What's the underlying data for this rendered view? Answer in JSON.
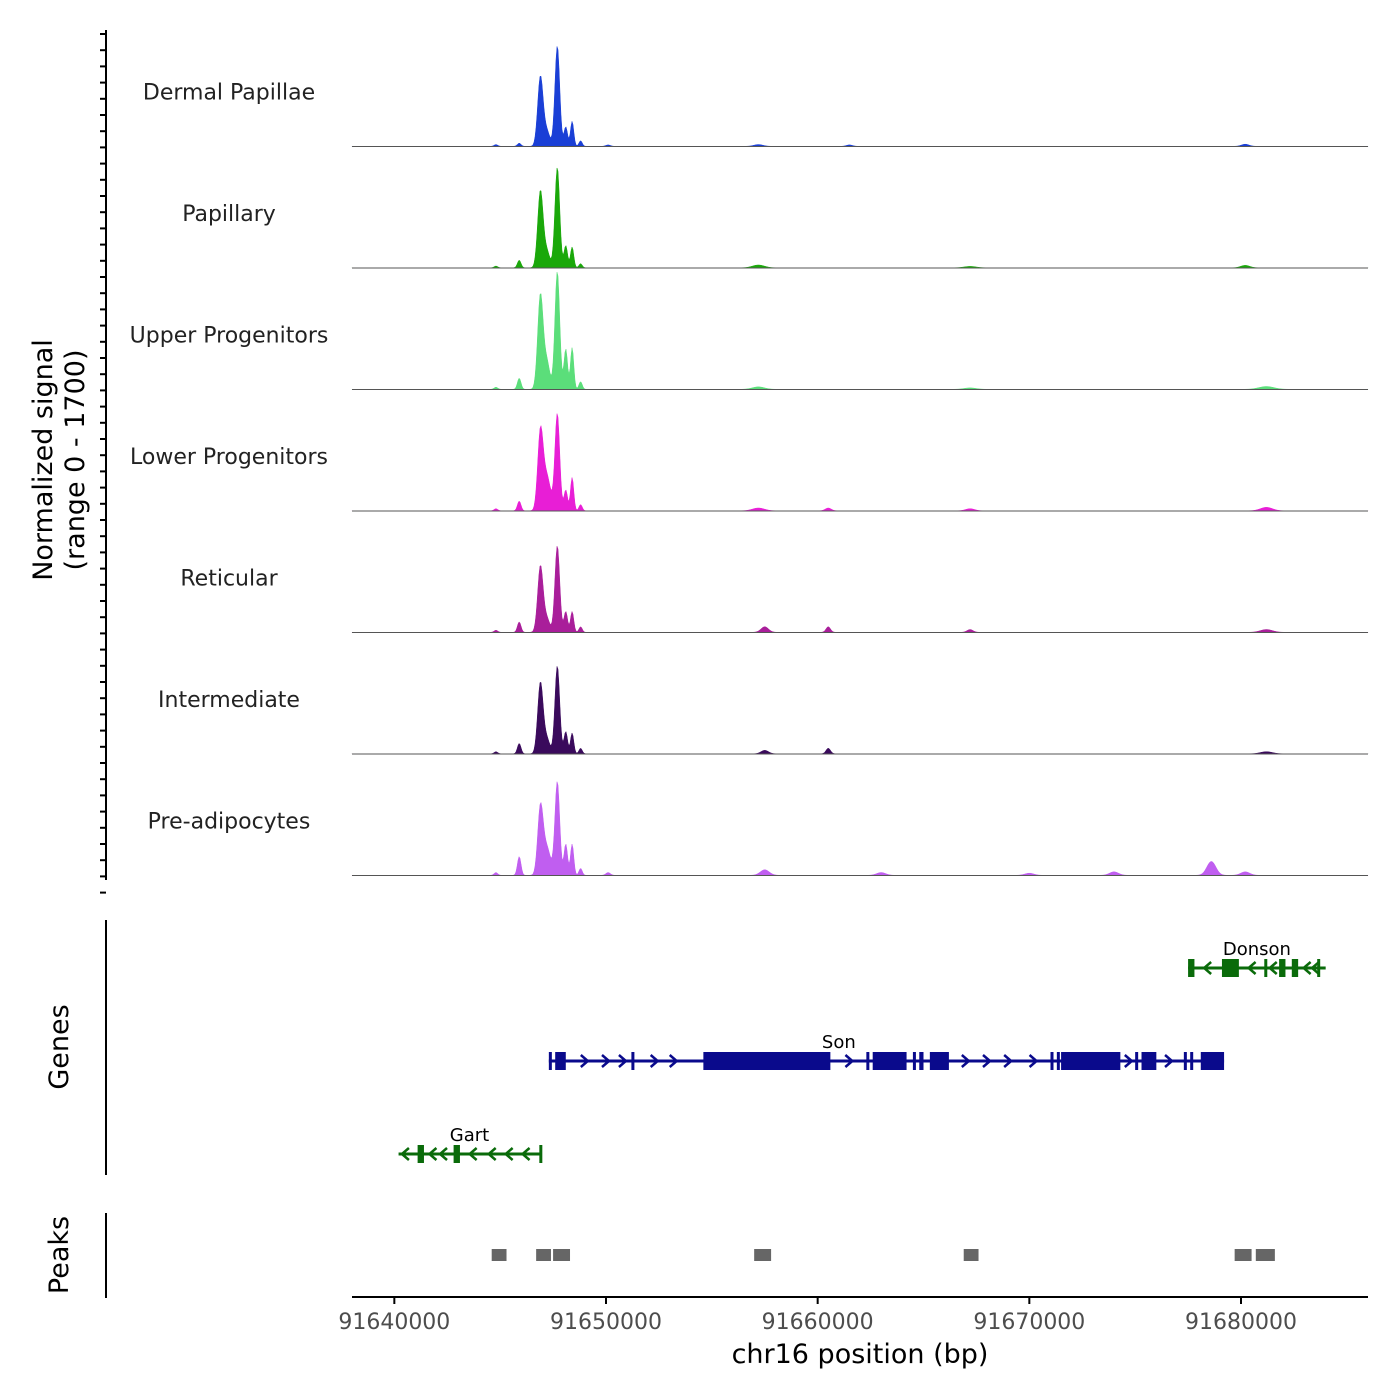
{
  "chart_data": {
    "type": "area",
    "chromosome": "chr16",
    "xlabel": "chr16 position (bp)",
    "xlim": [
      91638000,
      91686000
    ],
    "x_ticks": [
      91640000,
      91650000,
      91660000,
      91670000,
      91680000
    ],
    "x_tick_labels": [
      "91640000",
      "91650000",
      "91660000",
      "91670000",
      "91680000"
    ],
    "ylabel_line1": "Normalized signal",
    "ylabel_line2": "(range 0 - 1700)",
    "ylim": [
      0,
      1700
    ],
    "series": [
      {
        "name": "Dermal Papillae",
        "color": "#1a3fd6",
        "peaks": [
          [
            91644800,
            25,
            120
          ],
          [
            91645900,
            45,
            120
          ],
          [
            91646900,
            1000,
            180
          ],
          [
            91647200,
            220,
            200
          ],
          [
            91647700,
            1450,
            160
          ],
          [
            91648100,
            280,
            120
          ],
          [
            91648400,
            360,
            110
          ],
          [
            91648800,
            80,
            110
          ],
          [
            91650100,
            20,
            150
          ],
          [
            91657200,
            25,
            300
          ],
          [
            91661500,
            20,
            200
          ],
          [
            91680200,
            30,
            250
          ]
        ]
      },
      {
        "name": "Papillary",
        "color": "#1aa80a",
        "peaks": [
          [
            91644800,
            25,
            120
          ],
          [
            91645900,
            110,
            120
          ],
          [
            91646900,
            1100,
            180
          ],
          [
            91647200,
            240,
            200
          ],
          [
            91647700,
            1450,
            160
          ],
          [
            91648100,
            320,
            120
          ],
          [
            91648400,
            300,
            110
          ],
          [
            91648800,
            60,
            110
          ],
          [
            91657200,
            40,
            400
          ],
          [
            91667200,
            20,
            400
          ],
          [
            91680200,
            35,
            300
          ]
        ]
      },
      {
        "name": "Upper Progenitors",
        "color": "#5bde7a",
        "peaks": [
          [
            91644800,
            30,
            120
          ],
          [
            91645900,
            160,
            120
          ],
          [
            91646900,
            1350,
            180
          ],
          [
            91647200,
            400,
            200
          ],
          [
            91647700,
            1700,
            160
          ],
          [
            91648100,
            580,
            120
          ],
          [
            91648400,
            600,
            110
          ],
          [
            91648800,
            110,
            110
          ],
          [
            91657200,
            35,
            400
          ],
          [
            91667200,
            20,
            400
          ],
          [
            91681200,
            40,
            500
          ]
        ]
      },
      {
        "name": "Lower Progenitors",
        "color": "#e81ed6",
        "peaks": [
          [
            91644800,
            30,
            120
          ],
          [
            91645900,
            140,
            120
          ],
          [
            91646900,
            1100,
            180
          ],
          [
            91647200,
            500,
            250
          ],
          [
            91647700,
            1400,
            160
          ],
          [
            91648100,
            300,
            120
          ],
          [
            91648400,
            480,
            110
          ],
          [
            91648800,
            90,
            110
          ],
          [
            91657200,
            40,
            400
          ],
          [
            91660500,
            40,
            200
          ],
          [
            91667200,
            30,
            300
          ],
          [
            91681200,
            50,
            400
          ]
        ]
      },
      {
        "name": "Reticular",
        "color": "#a91e9a",
        "peaks": [
          [
            91644800,
            30,
            120
          ],
          [
            91645900,
            150,
            120
          ],
          [
            91646900,
            950,
            180
          ],
          [
            91647200,
            200,
            200
          ],
          [
            91647700,
            1250,
            160
          ],
          [
            91648100,
            300,
            120
          ],
          [
            91648400,
            300,
            110
          ],
          [
            91648800,
            80,
            110
          ],
          [
            91657500,
            80,
            250
          ],
          [
            91660500,
            80,
            150
          ],
          [
            91667200,
            40,
            200
          ],
          [
            91681200,
            40,
            400
          ]
        ]
      },
      {
        "name": "Intermediate",
        "color": "#3a0a5c",
        "peaks": [
          [
            91644800,
            30,
            120
          ],
          [
            91645900,
            150,
            120
          ],
          [
            91646900,
            1020,
            180
          ],
          [
            91647200,
            220,
            200
          ],
          [
            91647700,
            1270,
            160
          ],
          [
            91648100,
            320,
            120
          ],
          [
            91648400,
            300,
            110
          ],
          [
            91648800,
            80,
            110
          ],
          [
            91657500,
            50,
            250
          ],
          [
            91660500,
            80,
            150
          ],
          [
            91681200,
            30,
            400
          ]
        ]
      },
      {
        "name": "Pre-adipocytes",
        "color": "#c05ef0",
        "peaks": [
          [
            91644800,
            40,
            120
          ],
          [
            91645900,
            270,
            120
          ],
          [
            91646900,
            950,
            180
          ],
          [
            91647200,
            400,
            250
          ],
          [
            91647700,
            1350,
            160
          ],
          [
            91648100,
            450,
            120
          ],
          [
            91648400,
            450,
            110
          ],
          [
            91648800,
            100,
            110
          ],
          [
            91650100,
            40,
            150
          ],
          [
            91657500,
            80,
            300
          ],
          [
            91663000,
            40,
            300
          ],
          [
            91670000,
            30,
            300
          ],
          [
            91674000,
            50,
            300
          ],
          [
            91678600,
            200,
            300
          ],
          [
            91680200,
            50,
            300
          ]
        ]
      }
    ],
    "genes_label": "Genes",
    "genes": [
      {
        "name": "Donson",
        "strand": "-",
        "color": "#0a6b0a",
        "row": 0,
        "start": 91677500,
        "end": 91684000,
        "exons": [
          [
            91677500,
            91677800
          ],
          [
            91679100,
            91679900
          ],
          [
            91681100,
            91681200
          ],
          [
            91681800,
            91682100
          ],
          [
            91682400,
            91682700
          ],
          [
            91683600,
            91683700
          ]
        ],
        "arrows": [
          91678400,
          91680500,
          91681500,
          91683100,
          91683500
        ]
      },
      {
        "name": "Son",
        "strand": "+",
        "color": "#0a0a8c",
        "row": 1,
        "start": 91647300,
        "end": 91679200,
        "exons": [
          [
            91647300,
            91647400
          ],
          [
            91647600,
            91648100
          ],
          [
            91651200,
            91651300
          ],
          [
            91654600,
            91660600
          ],
          [
            91662300,
            91662400
          ],
          [
            91662600,
            91664200
          ],
          [
            91664500,
            91664600
          ],
          [
            91664800,
            91665000
          ],
          [
            91665300,
            91666200
          ],
          [
            91671000,
            91671100
          ],
          [
            91671300,
            91671400
          ],
          [
            91671500,
            91674300
          ],
          [
            91675000,
            91675100
          ],
          [
            91675300,
            91676000
          ],
          [
            91677300,
            91677400
          ],
          [
            91677600,
            91677700
          ],
          [
            91678100,
            91679200
          ]
        ],
        "arrows": [
          91649000,
          91650000,
          91650800,
          91652300,
          91653200,
          91661500,
          91667000,
          91668000,
          91669000,
          91670200,
          91674700,
          91676600
        ]
      },
      {
        "name": "Gart",
        "strand": "-",
        "color": "#0a6b0a",
        "row": 2,
        "start": 91640200,
        "end": 91646900,
        "exons": [
          [
            91641100,
            91641400
          ],
          [
            91642800,
            91643100
          ],
          [
            91646850,
            91646900
          ]
        ],
        "arrows": [
          91640500,
          91641800,
          91642300,
          91643700,
          91644600,
          91645400,
          91646200
        ]
      }
    ],
    "peaks_label": "Peaks",
    "peak_regions": [
      [
        91644600,
        91645300
      ],
      [
        91646700,
        91647400
      ],
      [
        91647500,
        91648300
      ],
      [
        91657000,
        91657800
      ],
      [
        91666900,
        91667600
      ],
      [
        91679700,
        91680500
      ],
      [
        91680700,
        91681600
      ]
    ]
  }
}
